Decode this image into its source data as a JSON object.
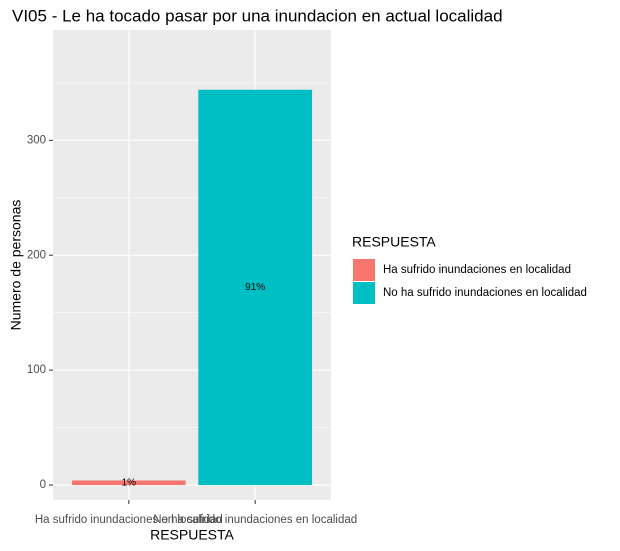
{
  "chart_data": {
    "type": "bar",
    "title": "VI05 - Le ha tocado pasar por una inundacion en actual localidad",
    "x_label": "RESPUESTA",
    "y_label": "Numero de personas",
    "categories": [
      "Ha sufrido inundaciones en localidad",
      "No ha sufrido inundaciones en localidad"
    ],
    "values": [
      4,
      344
    ],
    "colors": [
      "#f8766d",
      "#00bfc4"
    ],
    "annotations": [
      "1%",
      "91%"
    ],
    "legend_title": "RESPUESTA",
    "legend_position": "right",
    "ylim": [
      -13,
      396
    ],
    "yticks": [
      0,
      100,
      200,
      300
    ],
    "minor_yticks": [
      50,
      150,
      250,
      350
    ],
    "grid": true
  }
}
